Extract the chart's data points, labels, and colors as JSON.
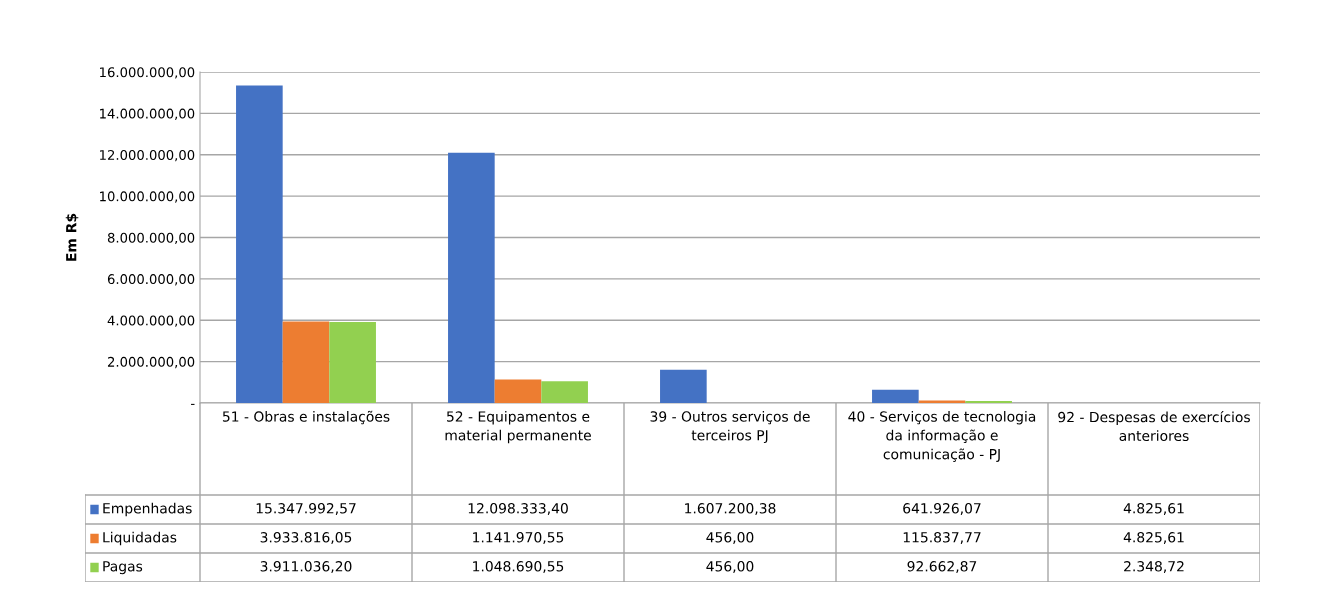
{
  "chart_data": {
    "type": "bar",
    "ylabel": "Em R$",
    "categories": [
      "51 - Obras e instalações",
      "52 - Equipamentos e material permanente",
      "39 - Outros serviços de terceiros PJ",
      "40 - Serviços de tecnologia da informação e comunicação - PJ",
      "92 - Despesas de exercícios anteriores"
    ],
    "series": [
      {
        "name": "Empenhadas",
        "color": "#4472c4",
        "values": [
          15347992.57,
          12098333.4,
          1607200.38,
          641926.07,
          4825.61
        ],
        "value_labels": [
          "15.347.992,57",
          "12.098.333,40",
          "1.607.200,38",
          "641.926,07",
          "4.825,61"
        ]
      },
      {
        "name": "Liquidadas",
        "color": "#ed7d31",
        "values": [
          3933816.05,
          1141970.55,
          456.0,
          115837.77,
          4825.61
        ],
        "value_labels": [
          "3.933.816,05",
          "1.141.970,55",
          "456,00",
          "115.837,77",
          "4.825,61"
        ]
      },
      {
        "name": "Pagas",
        "color": "#92d050",
        "values": [
          3911036.2,
          1048690.55,
          456.0,
          92662.87,
          2348.72
        ],
        "value_labels": [
          "3.911.036,20",
          "1.048.690,55",
          "456,00",
          "92.662,87",
          "2.348,72"
        ]
      }
    ],
    "ylim": [
      0,
      16000000
    ],
    "yticks": [
      {
        "value": 0,
        "label": "-"
      },
      {
        "value": 2000000,
        "label": "2.000.000,00"
      },
      {
        "value": 4000000,
        "label": "4.000.000,00"
      },
      {
        "value": 6000000,
        "label": "6.000.000,00"
      },
      {
        "value": 8000000,
        "label": "8.000.000,00"
      },
      {
        "value": 10000000,
        "label": "10.000.000,00"
      },
      {
        "value": 12000000,
        "label": "12.000.000,00"
      },
      {
        "value": 14000000,
        "label": "14.000.000,00"
      },
      {
        "value": 16000000,
        "label": "16.000.000,00"
      }
    ],
    "grid": "y",
    "legend": "left"
  }
}
